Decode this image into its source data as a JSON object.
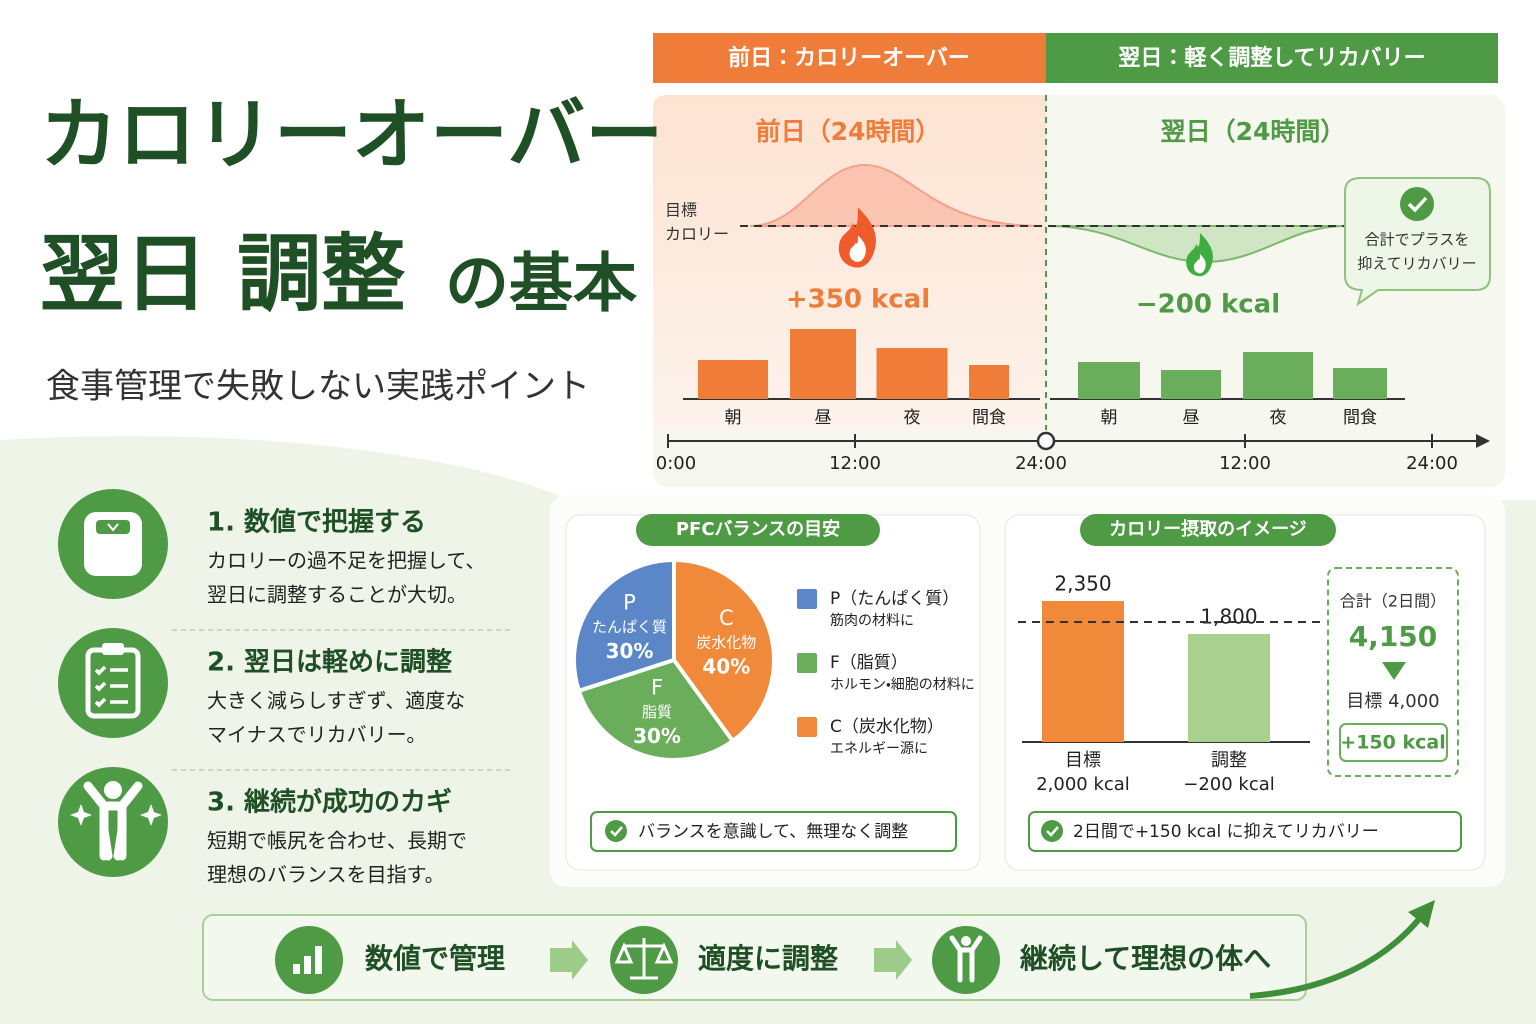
{
  "header": {
    "title_line1": "カロリーオーバー",
    "title_line2": "翌日 調整",
    "title_line2_suffix": "の基本",
    "subtitle": "食事管理で失敗しない実践ポイント"
  },
  "timeline": {
    "banner_left": "前日：カロリーオーバー",
    "banner_right": "翌日：軽く調整してリカバリー",
    "target_label": [
      "目標",
      "カロリー"
    ],
    "day1": {
      "title": "前日（24時間）",
      "delta": "+350 kcal",
      "meals": [
        "朝",
        "昼",
        "夜",
        "間食"
      ],
      "values": [
        39,
        70,
        51,
        34
      ],
      "color": "#f07c3a"
    },
    "day2": {
      "title": "翌日（24時間）",
      "delta": "−200 kcal",
      "meals": [
        "朝",
        "昼",
        "夜",
        "間食"
      ],
      "values": [
        37,
        29,
        47,
        31
      ],
      "color": "#6aae5c"
    },
    "bubble": [
      "合計でプラスを",
      "抑えてリカバリー"
    ],
    "time_labels": [
      "0:00",
      "12:00",
      "24:00",
      "12:00",
      "24:00"
    ]
  },
  "points": [
    {
      "title": "1. 数値で把握する",
      "text": [
        "カロリーの過不足を把握して、",
        "翌日に調整することが大切。"
      ]
    },
    {
      "title": "2. 翌日は軽めに調整",
      "text": [
        "大きく減らしすぎず、適度な",
        "マイナスでリカバリー。"
      ]
    },
    {
      "title": "3. 継続が成功のカギ",
      "text": [
        "短期で帳尻を合わせ、長期で",
        "理想のバランスを目指す。"
      ]
    }
  ],
  "pfc": {
    "type": "pie",
    "title": "PFCバランスの目安",
    "slices": [
      {
        "letter": "P",
        "name": "たんぱく質",
        "value": 30,
        "value_label": "30%",
        "color": "#5b87c8",
        "legend": "P（たんぱく質）",
        "note": "筋肉の材料に"
      },
      {
        "letter": "F",
        "name": "脂質",
        "value": 30,
        "value_label": "30%",
        "color": "#6aad5a",
        "legend": "F（脂質）",
        "note": "ホルモン・細胞の材料に"
      },
      {
        "letter": "C",
        "name": "炭水化物",
        "value": 40,
        "value_label": "40%",
        "color": "#f0893a",
        "legend": "C（炭水化物）",
        "note": "エネルギー源に"
      }
    ],
    "footer": "バランスを意識して、無理なく調整"
  },
  "intake": {
    "type": "bar",
    "title": "カロリー摂取のイメージ",
    "categories": [
      "目標",
      "調整"
    ],
    "sublabels": [
      "2,000 kcal",
      "−200 kcal"
    ],
    "values": [
      2350,
      1800
    ],
    "value_labels": [
      "2,350",
      "1,800"
    ],
    "colors": [
      "#f0893a",
      "#a9d08e"
    ],
    "ylim": [
      0,
      2500
    ],
    "target": 2000,
    "summary": {
      "title": "合計（2日間）",
      "total": "4,150",
      "target": "目標 4,000",
      "diff": "+150 kcal"
    },
    "footer": "2日間で+150 kcal に抑えてリカバリー"
  },
  "flow": [
    "数値で管理",
    "適度に調整",
    "継続して理想の体へ"
  ]
}
